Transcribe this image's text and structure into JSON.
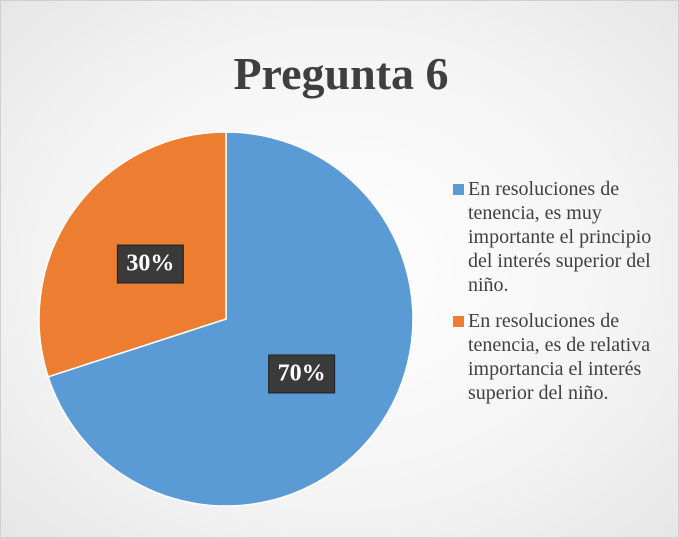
{
  "chart_data": {
    "type": "pie",
    "title": "Pregunta 6",
    "categories": [
      "En resoluciones de tenencia, es muy importante el principio del interés superior del niño.",
      "En resoluciones de tenencia, es de relativa importancia el interés superior del niño."
    ],
    "values": [
      70,
      30
    ],
    "value_labels": [
      "70%",
      "30%"
    ],
    "colors": [
      "#5b9bd5",
      "#ed7d31"
    ],
    "legend": "right"
  }
}
